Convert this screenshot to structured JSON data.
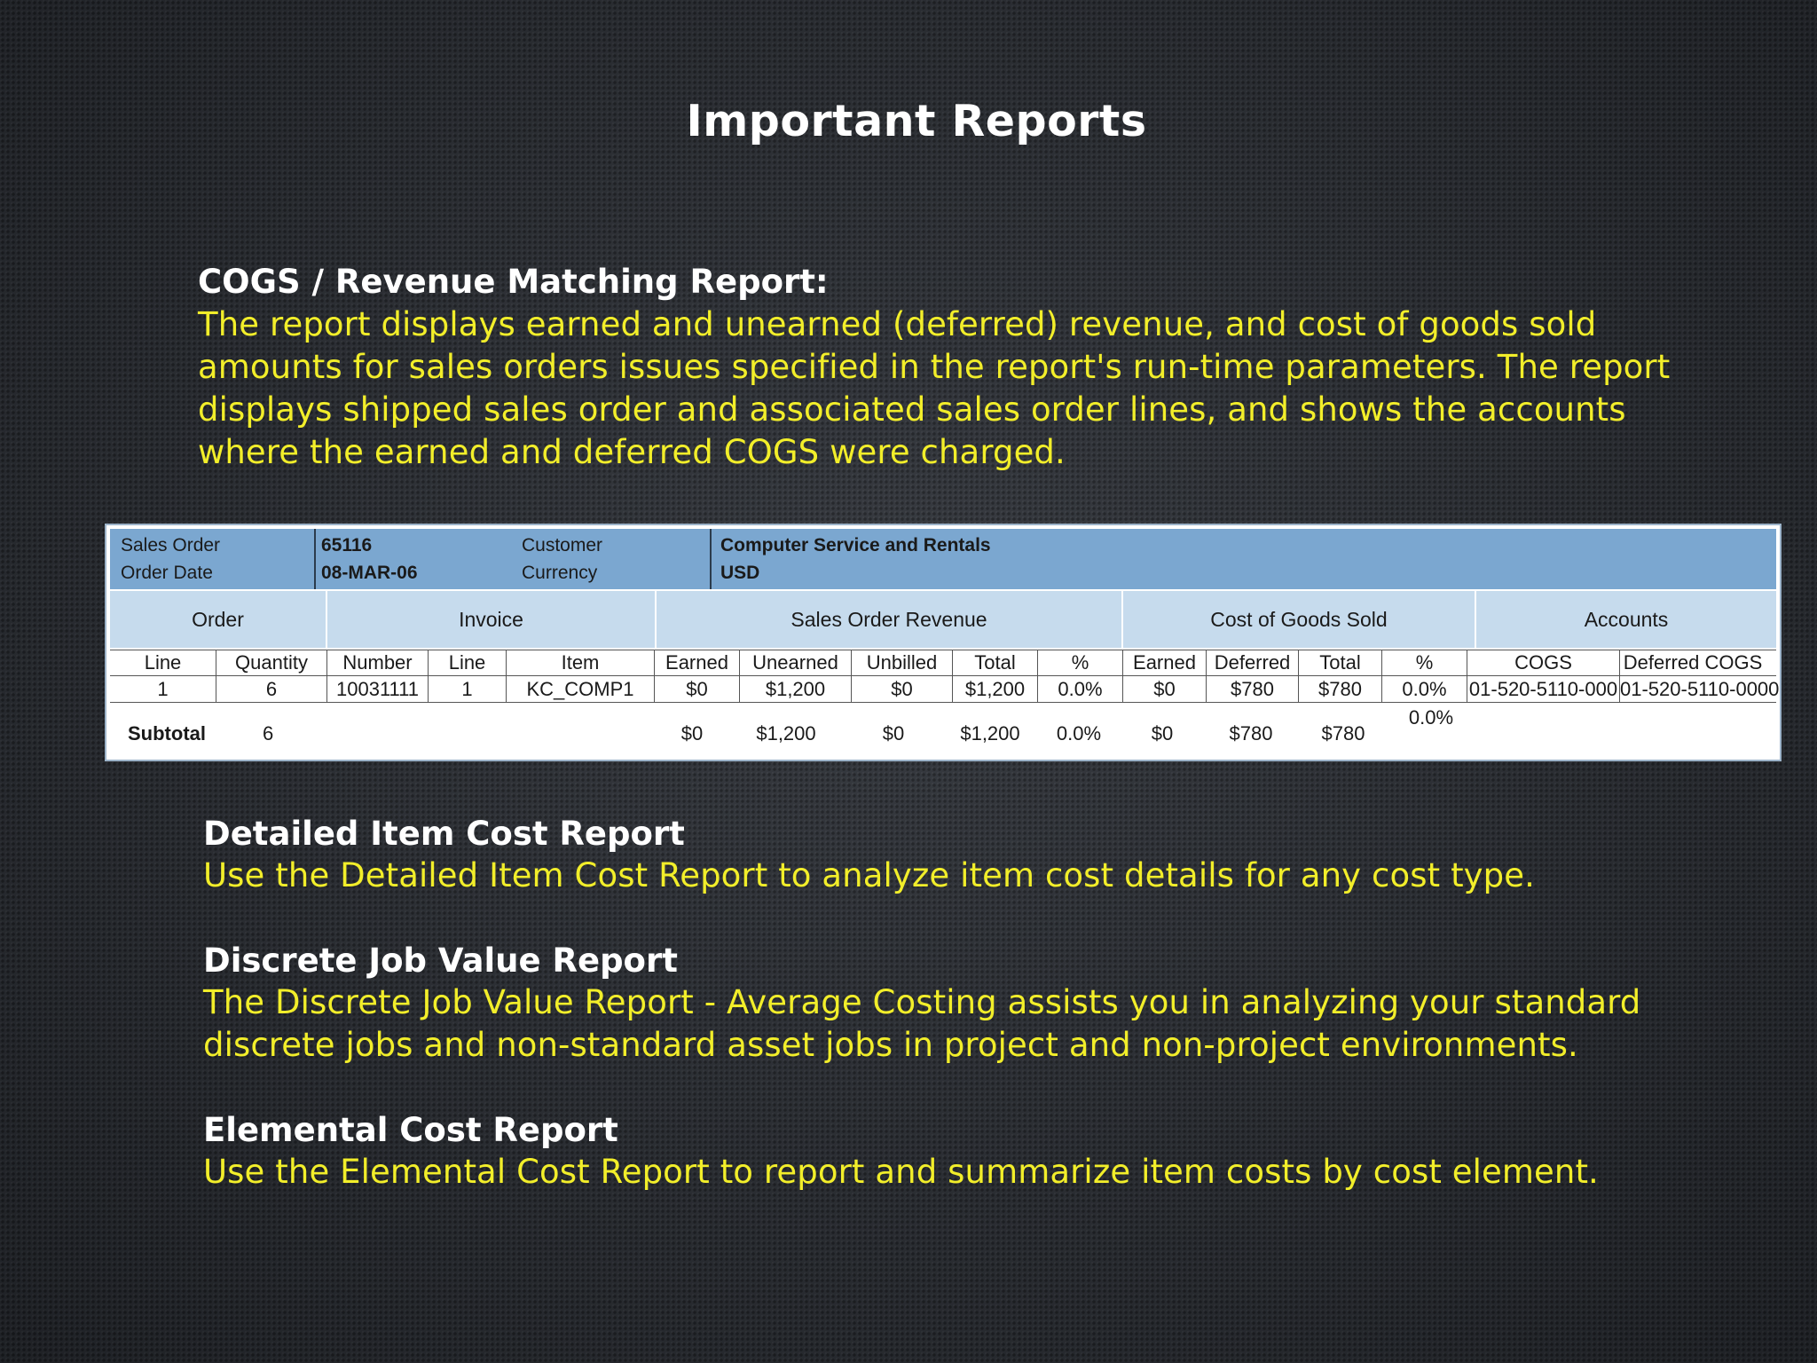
{
  "title": "Important Reports",
  "cogs_section": {
    "heading": "COGS / Revenue Matching Report:",
    "lines": [
      "The report displays earned and unearned (deferred) revenue, and cost of goods sold",
      "amounts for sales orders issues specified in the report's run-time parameters. The report",
      "displays shipped sales order and associated sales order lines, and shows the accounts",
      "where the earned and deferred COGS were charged."
    ]
  },
  "report": {
    "header": {
      "sales_order_label": "Sales Order",
      "order_date_label": "Order Date",
      "sales_order_value": "65116",
      "order_date_value": "08-MAR-06",
      "customer_label": "Customer",
      "currency_label": "Currency",
      "customer_value": "Computer Service and Rentals",
      "currency_value": "USD"
    },
    "groups": {
      "order": "Order",
      "invoice": "Invoice",
      "revenue": "Sales Order Revenue",
      "cogs": "Cost of Goods Sold",
      "accounts": "Accounts"
    },
    "columns": [
      "Line",
      "Quantity",
      "Number",
      "Line",
      "Item",
      "Earned",
      "Unearned",
      "Unbilled",
      "Total",
      "%",
      "Earned",
      "Deferred",
      "Total",
      "%",
      "COGS",
      "Deferred COGS"
    ],
    "row": [
      "1",
      "6",
      "10031111",
      "1",
      "KC_COMP1",
      "$0",
      "$1,200",
      "$0",
      "$1,200",
      "0.0%",
      "$0",
      "$780",
      "$780",
      "0.0%",
      "01-520-5110-000",
      "01-520-5110-0000"
    ],
    "subtotal": {
      "label": "Subtotal",
      "quantity": "6",
      "rev_earned": "$0",
      "rev_unearned": "$1,200",
      "rev_unbilled": "$0",
      "rev_total": "$1,200",
      "rev_pct": "0.0%",
      "cogs_earned": "$0",
      "cogs_deferred": "$780",
      "cogs_total": "$780",
      "cogs_pct": "0.0%"
    }
  },
  "detailed_section": {
    "heading": "Detailed Item Cost Report",
    "lines": [
      "Use the Detailed Item Cost Report to analyze item cost details for any cost type."
    ]
  },
  "discrete_section": {
    "heading": "Discrete Job Value Report",
    "lines": [
      "The Discrete Job Value Report - Average Costing assists you in analyzing your standard",
      "discrete jobs and non-standard asset jobs in project and non-project environments."
    ]
  },
  "elemental_section": {
    "heading": "Elemental Cost Report",
    "lines": [
      "Use the Elemental Cost Report to report and summarize item costs by cost element."
    ]
  }
}
